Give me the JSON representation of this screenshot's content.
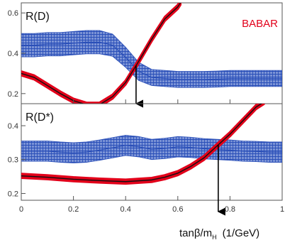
{
  "brand": "BABAR",
  "xlabel": {
    "main": "tanβ/m",
    "sub": "H",
    "unit": "(1/GeV)"
  },
  "colors": {
    "band": "#2a4fb8",
    "curve": "#111111",
    "curve_band": "#e2001a",
    "arrow": "#000000",
    "brand": "#e2001a"
  },
  "chart_data": [
    {
      "type": "line",
      "panel_label": "R(D)",
      "xlim": [
        0,
        1
      ],
      "ylim": [
        0.15,
        0.65
      ],
      "yticks": [
        "0.2",
        "0.4",
        "0.6",
        "0.8"
      ],
      "ytick_values": [
        0.2,
        0.4,
        0.6,
        0.8
      ],
      "xticks": [],
      "series": [
        {
          "role": "measurement-band",
          "x": [
            0,
            0.05,
            0.1,
            0.15,
            0.2,
            0.25,
            0.3,
            0.35,
            0.4,
            0.45,
            0.5,
            0.55,
            0.6,
            0.65,
            0.7,
            0.75,
            0.8,
            0.85,
            0.9,
            0.95,
            1.0
          ],
          "center": [
            0.44,
            0.44,
            0.445,
            0.445,
            0.45,
            0.455,
            0.455,
            0.44,
            0.38,
            0.31,
            0.28,
            0.275,
            0.27,
            0.27,
            0.27,
            0.272,
            0.275,
            0.275,
            0.275,
            0.275,
            0.275
          ],
          "halfwidth": [
            0.058,
            0.058,
            0.058,
            0.058,
            0.058,
            0.058,
            0.058,
            0.055,
            0.05,
            0.045,
            0.04,
            0.04,
            0.04,
            0.04,
            0.04,
            0.04,
            0.04,
            0.04,
            0.04,
            0.04,
            0.04
          ]
        },
        {
          "role": "prediction",
          "x": [
            0,
            0.05,
            0.1,
            0.15,
            0.2,
            0.25,
            0.3,
            0.35,
            0.4,
            0.45,
            0.5,
            0.55,
            0.6,
            0.61
          ],
          "y": [
            0.3,
            0.28,
            0.24,
            0.2,
            0.165,
            0.145,
            0.145,
            0.185,
            0.255,
            0.36,
            0.47,
            0.57,
            0.63,
            0.65
          ],
          "halfwidth": 0.01
        }
      ],
      "arrow_x": 0.44
    },
    {
      "type": "line",
      "panel_label": "R(D*)",
      "xlim": [
        0,
        1
      ],
      "ylim": [
        0.18,
        0.465
      ],
      "yticks": [
        "0.2",
        "0.3",
        "0.4"
      ],
      "ytick_values": [
        0.2,
        0.3,
        0.4
      ],
      "xticks": [
        "0",
        "0.2",
        "0.4",
        "0.6",
        "0.8",
        "1"
      ],
      "xtick_values": [
        0,
        0.2,
        0.4,
        0.6,
        0.8,
        1
      ],
      "series": [
        {
          "role": "measurement-band",
          "x": [
            0,
            0.05,
            0.1,
            0.15,
            0.2,
            0.25,
            0.3,
            0.35,
            0.4,
            0.45,
            0.5,
            0.55,
            0.6,
            0.65,
            0.7,
            0.75,
            0.8,
            0.85,
            0.9,
            0.95,
            1.0
          ],
          "center": [
            0.325,
            0.325,
            0.325,
            0.322,
            0.32,
            0.322,
            0.328,
            0.335,
            0.342,
            0.338,
            0.33,
            0.333,
            0.338,
            0.336,
            0.332,
            0.33,
            0.328,
            0.325,
            0.324,
            0.322,
            0.322
          ],
          "halfwidth": [
            0.03,
            0.03,
            0.03,
            0.03,
            0.03,
            0.03,
            0.03,
            0.03,
            0.03,
            0.03,
            0.03,
            0.03,
            0.03,
            0.03,
            0.03,
            0.03,
            0.03,
            0.03,
            0.03,
            0.03,
            0.03
          ]
        },
        {
          "role": "prediction",
          "x": [
            0,
            0.1,
            0.2,
            0.3,
            0.4,
            0.5,
            0.55,
            0.6,
            0.65,
            0.7,
            0.75,
            0.8,
            0.85,
            0.9,
            0.93
          ],
          "y": [
            0.252,
            0.248,
            0.242,
            0.238,
            0.235,
            0.24,
            0.248,
            0.26,
            0.28,
            0.305,
            0.34,
            0.375,
            0.415,
            0.455,
            0.47
          ],
          "halfwidth": 0.006
        }
      ],
      "arrow_x": 0.755
    }
  ]
}
